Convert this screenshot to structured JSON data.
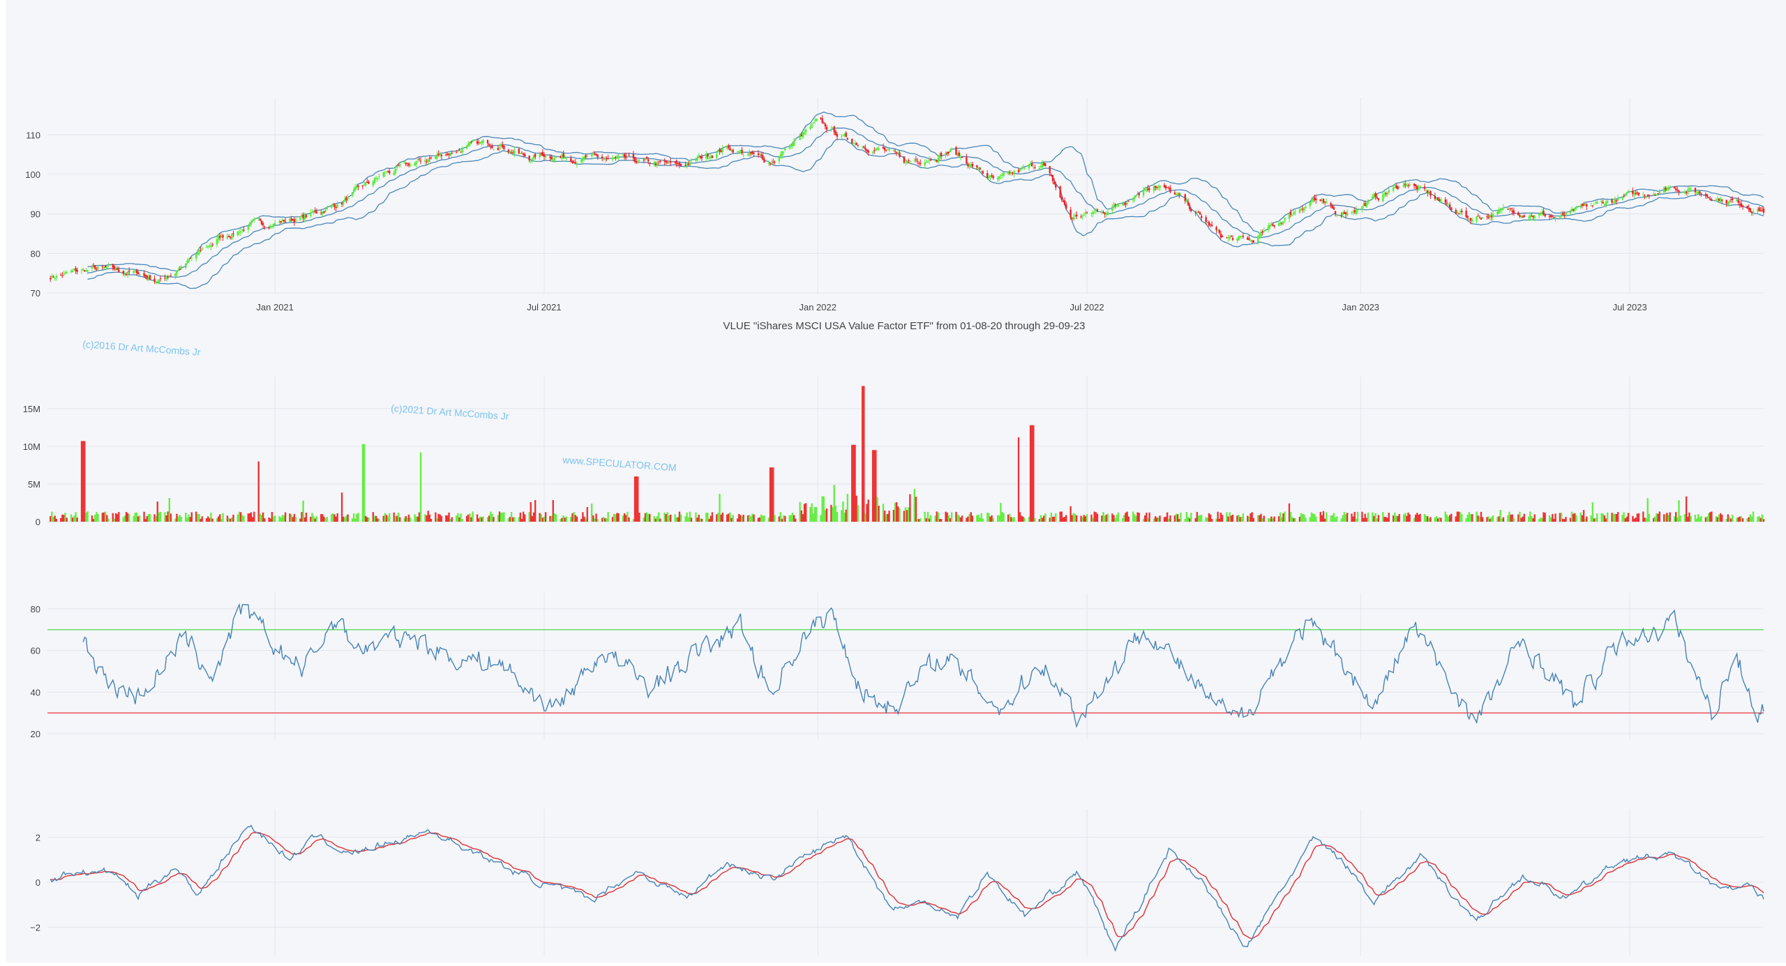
{
  "chart_data": [
    {
      "id": "price",
      "type": "candlestick",
      "title": "VLUE \"iShares MSCI USA Value Factor ETF\" from 01-08-20 through 29-09-23",
      "x_ticks": [
        "Jan 2021",
        "Jul 2021",
        "Jan 2022",
        "Jul 2022",
        "Jan 2023",
        "Jul 2023"
      ],
      "y_ticks": [
        70,
        80,
        90,
        100,
        110
      ],
      "ylim": [
        70,
        118
      ],
      "grid": true,
      "overlay": "bollinger bands",
      "close_anchors": [
        [
          "2020-08-01",
          74
        ],
        [
          "2020-09-01",
          76
        ],
        [
          "2020-10-01",
          75
        ],
        [
          "2020-10-15",
          73
        ],
        [
          "2020-11-01",
          77
        ],
        [
          "2020-11-25",
          84
        ],
        [
          "2020-12-15",
          87
        ],
        [
          "2021-01-01",
          88
        ],
        [
          "2021-01-20",
          89
        ],
        [
          "2021-02-15",
          93
        ],
        [
          "2021-03-15",
          100
        ],
        [
          "2021-04-15",
          104
        ],
        [
          "2021-05-10",
          107
        ],
        [
          "2021-06-01",
          108
        ],
        [
          "2021-06-20",
          104
        ],
        [
          "2021-07-01",
          105
        ],
        [
          "2021-08-01",
          104
        ],
        [
          "2021-09-01",
          103
        ],
        [
          "2021-10-01",
          102
        ],
        [
          "2021-11-01",
          107
        ],
        [
          "2021-11-30",
          103
        ],
        [
          "2022-01-01",
          113
        ],
        [
          "2022-01-20",
          109
        ],
        [
          "2022-02-15",
          106
        ],
        [
          "2022-03-01",
          103
        ],
        [
          "2022-04-01",
          106
        ],
        [
          "2022-05-01",
          98
        ],
        [
          "2022-06-01",
          103
        ],
        [
          "2022-06-20",
          89
        ],
        [
          "2022-07-15",
          91
        ],
        [
          "2022-08-15",
          98
        ],
        [
          "2022-09-01",
          94
        ],
        [
          "2022-09-30",
          84
        ],
        [
          "2022-10-20",
          83
        ],
        [
          "2022-11-30",
          94
        ],
        [
          "2022-12-15",
          90
        ],
        [
          "2023-01-01",
          92
        ],
        [
          "2023-02-01",
          98
        ],
        [
          "2023-03-01",
          92
        ],
        [
          "2023-03-15",
          89
        ],
        [
          "2023-04-15",
          91
        ],
        [
          "2023-05-15",
          89
        ],
        [
          "2023-06-15",
          93
        ],
        [
          "2023-07-31",
          97
        ],
        [
          "2023-09-01",
          94
        ],
        [
          "2023-09-29",
          91
        ]
      ]
    },
    {
      "id": "volume",
      "type": "bar",
      "y_ticks": [
        0,
        5000000,
        10000000,
        15000000
      ],
      "y_tick_labels": [
        "0",
        "5M",
        "10M",
        "15M"
      ],
      "ylim": [
        0,
        18500000
      ],
      "colors": {
        "up": "#66ee44",
        "down": "#ee3333"
      },
      "spikes": [
        [
          "2020-08-25",
          10.7,
          "down"
        ],
        [
          "2020-12-20",
          8,
          "down"
        ],
        [
          "2021-03-01",
          10.3,
          "up"
        ],
        [
          "2021-04-10",
          9.2,
          "up"
        ],
        [
          "2021-09-01",
          6,
          "down"
        ],
        [
          "2021-12-01",
          7.2,
          "down"
        ],
        [
          "2022-01-25",
          10.2,
          "down"
        ],
        [
          "2022-01-31",
          18,
          "down"
        ],
        [
          "2022-02-08",
          9.5,
          "down"
        ],
        [
          "2022-05-15",
          11.2,
          "down"
        ],
        [
          "2022-05-25",
          12.8,
          "down"
        ]
      ]
    },
    {
      "id": "rsi",
      "type": "line",
      "y_ticks": [
        20,
        40,
        60,
        80
      ],
      "ylim": [
        18,
        85
      ],
      "levels": [
        {
          "value": 70,
          "color": "#55dd55"
        },
        {
          "value": 30,
          "color": "#ee4444"
        }
      ],
      "anchors": [
        [
          "2020-08-25",
          66
        ],
        [
          "2020-09-10",
          45
        ],
        [
          "2020-10-01",
          38
        ],
        [
          "2020-11-01",
          65
        ],
        [
          "2020-11-20",
          48
        ],
        [
          "2020-12-10",
          80
        ],
        [
          "2021-01-01",
          62
        ],
        [
          "2021-01-20",
          50
        ],
        [
          "2021-02-10",
          75
        ],
        [
          "2021-03-01",
          60
        ],
        [
          "2021-04-01",
          68
        ],
        [
          "2021-05-01",
          56
        ],
        [
          "2021-06-01",
          55
        ],
        [
          "2021-06-20",
          40
        ],
        [
          "2021-07-10",
          33
        ],
        [
          "2021-08-10",
          60
        ],
        [
          "2021-09-10",
          42
        ],
        [
          "2021-10-15",
          60
        ],
        [
          "2021-11-10",
          72
        ],
        [
          "2021-11-30",
          40
        ],
        [
          "2021-12-20",
          64
        ],
        [
          "2022-01-10",
          78
        ],
        [
          "2022-01-31",
          40
        ],
        [
          "2022-02-20",
          33
        ],
        [
          "2022-03-25",
          58
        ],
        [
          "2022-05-05",
          32
        ],
        [
          "2022-06-01",
          55
        ],
        [
          "2022-06-25",
          28
        ],
        [
          "2022-08-10",
          72
        ],
        [
          "2022-09-15",
          40
        ],
        [
          "2022-10-10",
          25
        ],
        [
          "2022-11-25",
          72
        ],
        [
          "2022-12-20",
          55
        ],
        [
          "2023-01-10",
          32
        ],
        [
          "2023-02-05",
          72
        ],
        [
          "2023-03-20",
          25
        ],
        [
          "2023-04-20",
          65
        ],
        [
          "2023-05-25",
          33
        ],
        [
          "2023-06-25",
          65
        ],
        [
          "2023-07-31",
          73
        ],
        [
          "2023-08-25",
          30
        ],
        [
          "2023-09-10",
          58
        ],
        [
          "2023-09-25",
          30
        ],
        [
          "2023-09-29",
          33
        ]
      ]
    },
    {
      "id": "macd",
      "type": "line",
      "y_ticks": [
        -2,
        0,
        2
      ],
      "y_tick_labels": [
        "−2",
        "0",
        "2"
      ],
      "ylim": [
        -3.2,
        3.0
      ],
      "series_colors": [
        "#4682b4",
        "#e03030"
      ],
      "anchors": [
        [
          "2020-08-01",
          0
        ],
        [
          "2020-08-20",
          0.5
        ],
        [
          "2020-09-15",
          0.4
        ],
        [
          "2020-10-01",
          -0.6
        ],
        [
          "2020-10-25",
          0.7
        ],
        [
          "2020-11-10",
          -0.5
        ],
        [
          "2020-12-15",
          2.6
        ],
        [
          "2021-01-10",
          1.0
        ],
        [
          "2021-01-30",
          2.1
        ],
        [
          "2021-02-20",
          1.2
        ],
        [
          "2021-03-20",
          1.8
        ],
        [
          "2021-04-15",
          2.3
        ],
        [
          "2021-05-20",
          1.2
        ],
        [
          "2021-06-10",
          0.5
        ],
        [
          "2021-07-10",
          -0.3
        ],
        [
          "2021-08-01",
          -0.8
        ],
        [
          "2021-09-01",
          0.5
        ],
        [
          "2021-10-05",
          -0.7
        ],
        [
          "2021-11-01",
          0.9
        ],
        [
          "2021-11-30",
          0.1
        ],
        [
          "2021-12-20",
          1.0
        ],
        [
          "2022-01-20",
          2.1
        ],
        [
          "2022-02-20",
          -1.2
        ],
        [
          "2022-03-15",
          -0.9
        ],
        [
          "2022-04-05",
          -1.5
        ],
        [
          "2022-04-25",
          0.4
        ],
        [
          "2022-05-20",
          -1.5
        ],
        [
          "2022-06-25",
          0.5
        ],
        [
          "2022-07-20",
          -3.0
        ],
        [
          "2022-08-25",
          1.4
        ],
        [
          "2022-09-15",
          0.2
        ],
        [
          "2022-10-15",
          -3.0
        ],
        [
          "2022-11-30",
          1.9
        ],
        [
          "2022-12-20",
          1.0
        ],
        [
          "2023-01-10",
          -0.8
        ],
        [
          "2023-02-10",
          1.1
        ],
        [
          "2023-03-20",
          -1.7
        ],
        [
          "2023-04-20",
          0.3
        ],
        [
          "2023-05-20",
          -0.7
        ],
        [
          "2023-06-25",
          1.0
        ],
        [
          "2023-07-31",
          1.2
        ],
        [
          "2023-08-31",
          -0.4
        ],
        [
          "2023-09-20",
          -0.2
        ],
        [
          "2023-09-29",
          -0.9
        ]
      ]
    }
  ],
  "watermarks": [
    "(c)2016 Dr Art McCombs Jr",
    "(c)2021 Dr Art McCombs Jr",
    "www.SPECULATOR.COM"
  ],
  "colors": {
    "up": "#55ee33",
    "down": "#ee2222",
    "band": "#4a86b8",
    "grid": "#e3e5ec",
    "text": "#444444",
    "background": "#f5f6fa"
  }
}
